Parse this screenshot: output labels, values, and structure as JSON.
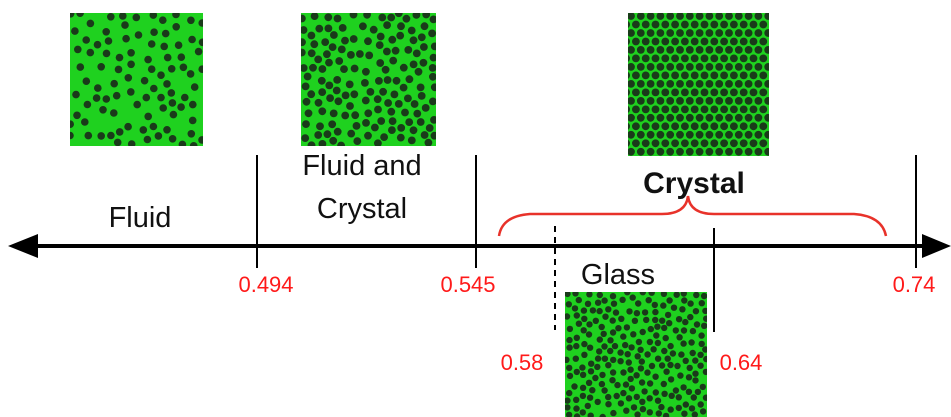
{
  "labels": {
    "fluid": "Fluid",
    "fluid_and_crystal_line1": "Fluid and",
    "fluid_and_crystal_line2": "Crystal",
    "crystal": "Crystal",
    "glass": "Glass"
  },
  "ticks": {
    "t0494": "0.494",
    "t0545": "0.545",
    "t058": "0.58",
    "t064": "0.64",
    "t074": "0.74"
  },
  "colors": {
    "axis": "#000000",
    "tick_label": "#ff1a1a",
    "brace": "#e8322a",
    "micrograph_bg": "#1fd11f",
    "particle": "#1a3a1a"
  },
  "micrographs": [
    {
      "name": "fluid-micrograph",
      "arrangement": "random-sparse"
    },
    {
      "name": "fluid-crystal-micrograph",
      "arrangement": "mixed-dense"
    },
    {
      "name": "crystal-micrograph",
      "arrangement": "hexagonal-lattice"
    },
    {
      "name": "glass-micrograph",
      "arrangement": "random-dense"
    }
  ]
}
